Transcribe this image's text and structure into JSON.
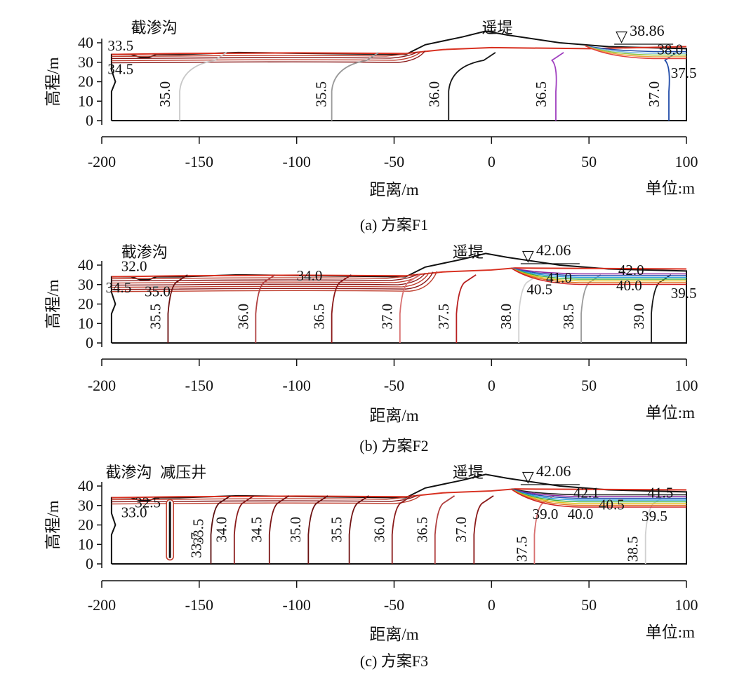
{
  "panels": [
    {
      "id": "a",
      "caption": "(a) 方案F1",
      "annotations": [
        "截渗沟",
        "遥堤"
      ],
      "water_level": "38.86",
      "contour_labels": [
        "33.5",
        "34.5",
        "35.0",
        "35.5",
        "36.0",
        "36.5",
        "37.0",
        "37.5",
        "38.0"
      ],
      "contour_values": [
        35.0,
        35.5,
        36.0,
        36.5,
        37.0
      ],
      "contour_x_at_bottom": [
        -160,
        -82,
        -22,
        33,
        91
      ],
      "contour_colors": [
        "#c8c8c8",
        "#9a9a9a",
        "#151515",
        "#a040c0",
        "#1f4aa8"
      ],
      "upstream_colors": [
        "#1f4aa8",
        "#7ab8e0",
        "#8ec63f",
        "#f0a040",
        "#e04040"
      ],
      "xlabel": "距离/m",
      "ylabel": "高程/m",
      "unit": "单位:m"
    },
    {
      "id": "b",
      "caption": "(b) 方案F2",
      "annotations": [
        "截渗沟",
        "遥堤"
      ],
      "water_level": "42.06",
      "contour_labels": [
        "32.0",
        "34.5",
        "35.0",
        "34.0",
        "35.5",
        "36.0",
        "36.5",
        "37.0",
        "37.5",
        "38.0",
        "38.5",
        "39.0",
        "40.5",
        "41.0",
        "42.0",
        "40.0",
        "39.5"
      ],
      "contour_values": [
        35.5,
        36.0,
        36.5,
        37.0,
        37.5,
        38.0,
        38.5,
        39.0
      ],
      "contour_x_at_bottom": [
        -166,
        -121,
        -82,
        -47,
        -18,
        14,
        46,
        82
      ],
      "contour_colors": [
        "#6b1010",
        "#b04040",
        "#8a1818",
        "#d87070",
        "#b82020",
        "#d0d0d0",
        "#9a9a9a",
        "#151515"
      ],
      "upstream_colors": [
        "#8e2aa0",
        "#2050b0",
        "#30a0e0",
        "#40b040",
        "#e0c020",
        "#e07020",
        "#d02020"
      ],
      "xlabel": "距离/m",
      "ylabel": "高程/m",
      "unit": "单位:m"
    },
    {
      "id": "c",
      "caption": "(c) 方案F3",
      "annotations": [
        "截渗沟",
        "减压井",
        "遥堤"
      ],
      "water_level": "42.06",
      "contour_labels": [
        "32.5",
        "33.0",
        "33.5",
        "33.7",
        "34.0",
        "34.5",
        "35.0",
        "35.5",
        "36.0",
        "36.5",
        "37.0",
        "37.5",
        "38.5",
        "39.0",
        "40.0",
        "40.5",
        "42.1",
        "41.5",
        "39.5"
      ],
      "contour_values": [
        33.7,
        34.0,
        34.5,
        35.0,
        35.5,
        36.0,
        36.5,
        37.0,
        37.5,
        38.5
      ],
      "contour_x_at_bottom": [
        -144,
        -132,
        -114,
        -94,
        -73,
        -51,
        -29,
        -9,
        22,
        79
      ],
      "contour_colors": [
        "#5a1010",
        "#8a1a1a",
        "#7a1414",
        "#6a1010",
        "#701212",
        "#8a1a1a",
        "#b04040",
        "#8a1818",
        "#d87070",
        "#d0d0d0"
      ],
      "upstream_colors": [
        "#202020",
        "#8e2aa0",
        "#2050b0",
        "#30a0e0",
        "#40b040",
        "#e0c020",
        "#e07020",
        "#d02020"
      ],
      "xlabel": "距离/m",
      "ylabel": "高程/m",
      "unit": "单位:m"
    }
  ],
  "axes": {
    "x_ticks": [
      "-200",
      "-150",
      "-100",
      "-50",
      "0",
      "50",
      "100"
    ],
    "x_values": [
      -200,
      -150,
      -100,
      -50,
      0,
      50,
      100
    ],
    "y_ticks": [
      "0",
      "10",
      "20",
      "30",
      "40"
    ],
    "y_values": [
      0,
      10,
      20,
      30,
      40
    ],
    "xlim": [
      -200,
      100
    ],
    "ylim": [
      0,
      40
    ]
  },
  "wl_symbol": "▽",
  "colors": {
    "outline": "#111111",
    "phreatic": "#d83020"
  }
}
